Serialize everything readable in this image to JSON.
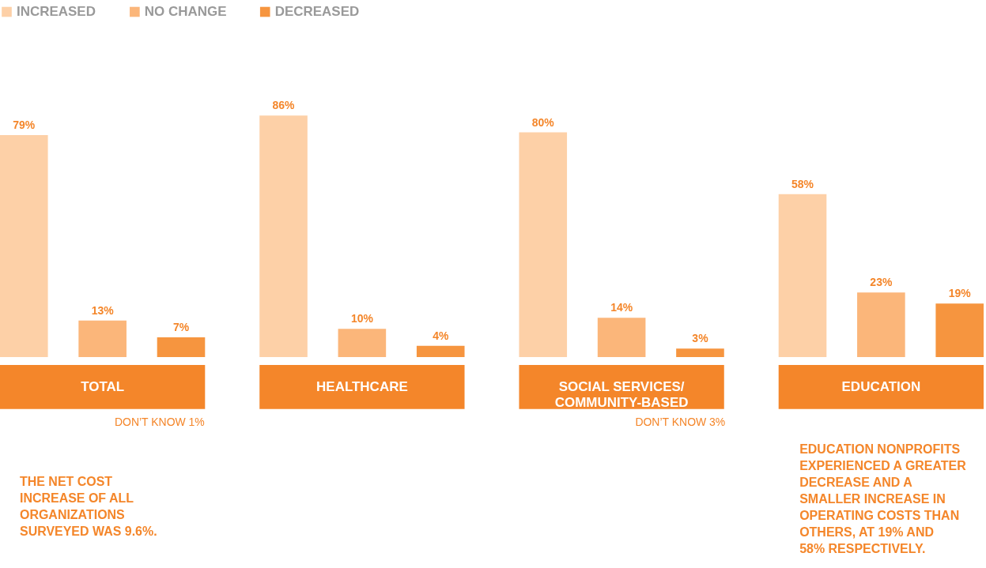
{
  "chart_data": {
    "type": "bar",
    "categories": [
      "TOTAL",
      "HEALTHCARE",
      "SOCIAL SERVICES/ COMMUNITY-BASED",
      "EDUCATION"
    ],
    "series": [
      {
        "name": "INCREASED",
        "color": "#fdd0a7",
        "values": [
          79,
          86,
          80,
          58
        ],
        "value_labels": [
          "79%",
          "86%",
          "80%",
          "58%"
        ]
      },
      {
        "name": "NO CHANGE",
        "color": "#fbb67a",
        "values": [
          13,
          10,
          14,
          23
        ],
        "value_labels": [
          "13%",
          "10%",
          "14%",
          "23%"
        ]
      },
      {
        "name": "DECREASED",
        "color": "#f6953f",
        "values": [
          7,
          4,
          3,
          19
        ],
        "value_labels": [
          "7%",
          "4%",
          "3%",
          "19%"
        ]
      }
    ],
    "annotations": [
      "DON’T KNOW 1%",
      "DON’T KNOW 3%",
      "THE NET COST INCREASE OF ALL ORGANIZATIONS SURVEYED WAS 9.6%.",
      "EDUCATION NONPROFITS EXPERIENCED A GREATER DECREASE AND A SMALLER INCREASE IN OPERATING COSTS THAN OTHERS, AT 19% AND 58% RESPECTIVELY."
    ],
    "legend": "top left",
    "grid": false,
    "tick_labels": false
  }
}
